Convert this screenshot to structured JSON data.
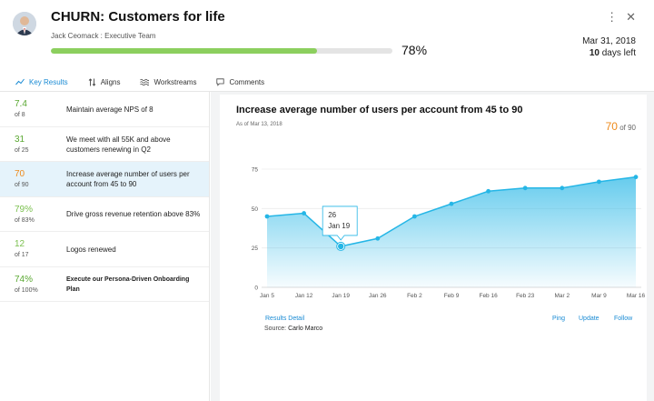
{
  "header": {
    "title": "CHURN: Customers for life",
    "owner": "Jack Ceomack : Executive Team",
    "progress_pct": 78,
    "progress_label": "78%",
    "due_date": "Mar 31, 2018",
    "days_left_num": "10",
    "days_left_text": " days left",
    "icons": [
      "more-vertical-icon",
      "close-icon"
    ]
  },
  "tabs": [
    {
      "label": "Key Results",
      "icon": "trend-line-icon",
      "active": true
    },
    {
      "label": "Aligns",
      "icon": "align-arrows-icon",
      "active": false
    },
    {
      "label": "Workstreams",
      "icon": "waves-icon",
      "active": false
    },
    {
      "label": "Comments",
      "icon": "comment-bubble-icon",
      "active": false
    }
  ],
  "key_results": [
    {
      "value": "7.4",
      "of": "of 8",
      "name": "Maintain average NPS of 8",
      "color": "#5aa832"
    },
    {
      "value": "31",
      "of": "of 25",
      "name": "We meet with all 55K and above customers renewing in Q2",
      "color": "#5aa832"
    },
    {
      "value": "70",
      "of": "of 90",
      "name": "Increase average number of users per account from 45 to 90",
      "color": "#ee8a1b"
    },
    {
      "value": "79%",
      "of": "of 83%",
      "name": "Drive gross revenue retention above 83%",
      "color": "#7bc04f"
    },
    {
      "value": "12",
      "of": "of 17",
      "name": "Logos renewed",
      "color": "#7bc04f"
    },
    {
      "value": "74%",
      "of": "of 100%",
      "name": "Execute our Persona-Driven Onboarding Plan",
      "color": "#5aa832"
    }
  ],
  "detail": {
    "title": "Increase average number of users per account from 45 to 90",
    "as_of": "As of Mar 13, 2018",
    "current_value": "70",
    "current_of": " of 90",
    "tooltip_value": "26",
    "tooltip_date": "Jan 19",
    "links": {
      "results_detail": "Results Detail",
      "ping": "Ping",
      "update": "Update",
      "follow": "Follow"
    },
    "source_label": "Source:",
    "source_name": "Carlo Marco"
  },
  "chart_data": {
    "type": "area",
    "x": [
      "Jan 5",
      "Jan 12",
      "Jan 19",
      "Jan 26",
      "Feb 2",
      "Feb 9",
      "Feb 16",
      "Feb 23",
      "Mar 2",
      "Mar 9",
      "Mar 16"
    ],
    "values": [
      45,
      47,
      26,
      31,
      45,
      53,
      61,
      63,
      63,
      67,
      70
    ],
    "yticks": [
      0,
      25,
      50,
      75
    ],
    "ylim": [
      0,
      75
    ],
    "grid": true,
    "highlight_index": 2,
    "color": "#25b6e6"
  }
}
